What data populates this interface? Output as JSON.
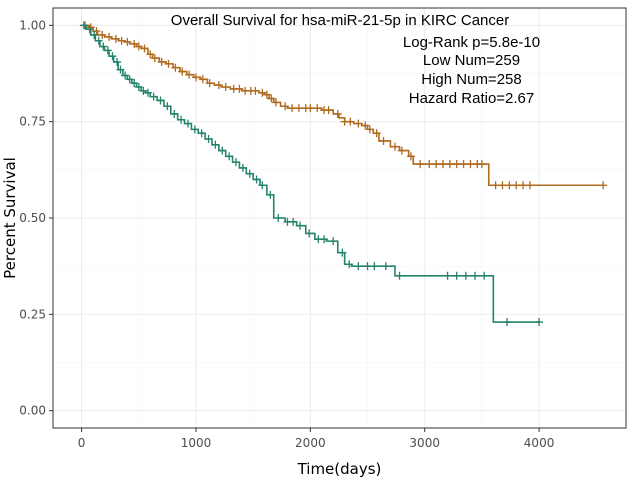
{
  "chart_data": {
    "type": "line",
    "subtype": "kaplan-meier",
    "title": "Overall Survival for hsa-miR-21-5p in KIRC Cancer",
    "annotations": [
      "Log-Rank p=5.8e-10",
      "Low Num=259",
      "High Num=258",
      "Hazard Ratio=2.67"
    ],
    "xlabel": "Time(days)",
    "ylabel": "Percent Survival",
    "xlim": [
      -250,
      4760
    ],
    "ylim": [
      -0.045,
      1.045
    ],
    "xticks": [
      0,
      1000,
      2000,
      3000,
      4000
    ],
    "xtick_labels": [
      "0",
      "1000",
      "2000",
      "3000",
      "4000"
    ],
    "yticks": [
      0,
      0.25,
      0.5,
      0.75,
      1
    ],
    "ytick_labels": [
      "0.00",
      "0.25",
      "0.50",
      "0.75",
      "1.00"
    ],
    "grid": true,
    "legend": "none",
    "colors": {
      "low": "#b06a1e",
      "high": "#25836d",
      "grid": "#ebebeb",
      "panel_border": "#333333"
    },
    "series": [
      {
        "color": "#b06a1e",
        "steps": [
          [
            0,
            1.0
          ],
          [
            60,
            0.995
          ],
          [
            100,
            0.985
          ],
          [
            140,
            0.975
          ],
          [
            200,
            0.97
          ],
          [
            260,
            0.965
          ],
          [
            320,
            0.96
          ],
          [
            380,
            0.957
          ],
          [
            420,
            0.952
          ],
          [
            480,
            0.945
          ],
          [
            520,
            0.94
          ],
          [
            580,
            0.925
          ],
          [
            620,
            0.915
          ],
          [
            680,
            0.905
          ],
          [
            740,
            0.9
          ],
          [
            800,
            0.89
          ],
          [
            860,
            0.88
          ],
          [
            920,
            0.872
          ],
          [
            980,
            0.865
          ],
          [
            1040,
            0.86
          ],
          [
            1100,
            0.85
          ],
          [
            1160,
            0.845
          ],
          [
            1220,
            0.84
          ],
          [
            1300,
            0.835
          ],
          [
            1400,
            0.83
          ],
          [
            1550,
            0.825
          ],
          [
            1600,
            0.82
          ],
          [
            1640,
            0.81
          ],
          [
            1680,
            0.8
          ],
          [
            1740,
            0.79
          ],
          [
            1800,
            0.785
          ],
          [
            2100,
            0.78
          ],
          [
            2200,
            0.77
          ],
          [
            2250,
            0.76
          ],
          [
            2300,
            0.75
          ],
          [
            2380,
            0.745
          ],
          [
            2450,
            0.74
          ],
          [
            2500,
            0.73
          ],
          [
            2550,
            0.72
          ],
          [
            2600,
            0.7
          ],
          [
            2700,
            0.685
          ],
          [
            2780,
            0.675
          ],
          [
            2860,
            0.66
          ],
          [
            2900,
            0.64
          ],
          [
            3560,
            0.585
          ],
          [
            4560,
            0.585
          ]
        ],
        "censor_times": [
          30,
          80,
          130,
          180,
          240,
          300,
          350,
          400,
          460,
          500,
          550,
          600,
          640,
          700,
          760,
          820,
          880,
          940,
          1000,
          1060,
          1120,
          1200,
          1260,
          1330,
          1380,
          1430,
          1480,
          1520,
          1580,
          1620,
          1660,
          1700,
          1780,
          1840,
          1900,
          1960,
          2000,
          2060,
          2120,
          2160,
          2240,
          2300,
          2350,
          2420,
          2480,
          2520,
          2580,
          2640,
          2740,
          2800,
          2880,
          2960,
          3040,
          3100,
          3160,
          3220,
          3280,
          3340,
          3400,
          3460,
          3500,
          3620,
          3680,
          3740,
          3800,
          3860,
          3920,
          4560
        ]
      },
      {
        "color": "#25836d",
        "steps": [
          [
            0,
            1.0
          ],
          [
            40,
            0.99
          ],
          [
            80,
            0.975
          ],
          [
            120,
            0.96
          ],
          [
            160,
            0.945
          ],
          [
            200,
            0.935
          ],
          [
            240,
            0.92
          ],
          [
            280,
            0.905
          ],
          [
            320,
            0.885
          ],
          [
            360,
            0.87
          ],
          [
            400,
            0.86
          ],
          [
            440,
            0.85
          ],
          [
            480,
            0.84
          ],
          [
            520,
            0.83
          ],
          [
            560,
            0.825
          ],
          [
            600,
            0.815
          ],
          [
            660,
            0.805
          ],
          [
            720,
            0.79
          ],
          [
            780,
            0.77
          ],
          [
            840,
            0.755
          ],
          [
            900,
            0.745
          ],
          [
            960,
            0.73
          ],
          [
            1020,
            0.72
          ],
          [
            1080,
            0.705
          ],
          [
            1140,
            0.69
          ],
          [
            1200,
            0.675
          ],
          [
            1260,
            0.66
          ],
          [
            1320,
            0.645
          ],
          [
            1380,
            0.63
          ],
          [
            1440,
            0.615
          ],
          [
            1500,
            0.6
          ],
          [
            1560,
            0.585
          ],
          [
            1620,
            0.56
          ],
          [
            1680,
            0.5
          ],
          [
            1780,
            0.49
          ],
          [
            1880,
            0.48
          ],
          [
            1960,
            0.46
          ],
          [
            2040,
            0.445
          ],
          [
            2140,
            0.44
          ],
          [
            2240,
            0.41
          ],
          [
            2300,
            0.38
          ],
          [
            2360,
            0.375
          ],
          [
            2740,
            0.35
          ],
          [
            3600,
            0.23
          ],
          [
            4000,
            0.23
          ]
        ],
        "censor_times": [
          20,
          70,
          110,
          150,
          190,
          230,
          270,
          310,
          340,
          380,
          420,
          460,
          500,
          540,
          580,
          630,
          690,
          750,
          810,
          870,
          930,
          990,
          1050,
          1110,
          1170,
          1230,
          1290,
          1350,
          1410,
          1470,
          1530,
          1580,
          1650,
          1720,
          1800,
          1850,
          1910,
          1990,
          2070,
          2120,
          2200,
          2280,
          2340,
          2420,
          2500,
          2560,
          2660,
          2780,
          3200,
          3280,
          3360,
          3440,
          3520,
          3720,
          4000
        ]
      }
    ]
  }
}
